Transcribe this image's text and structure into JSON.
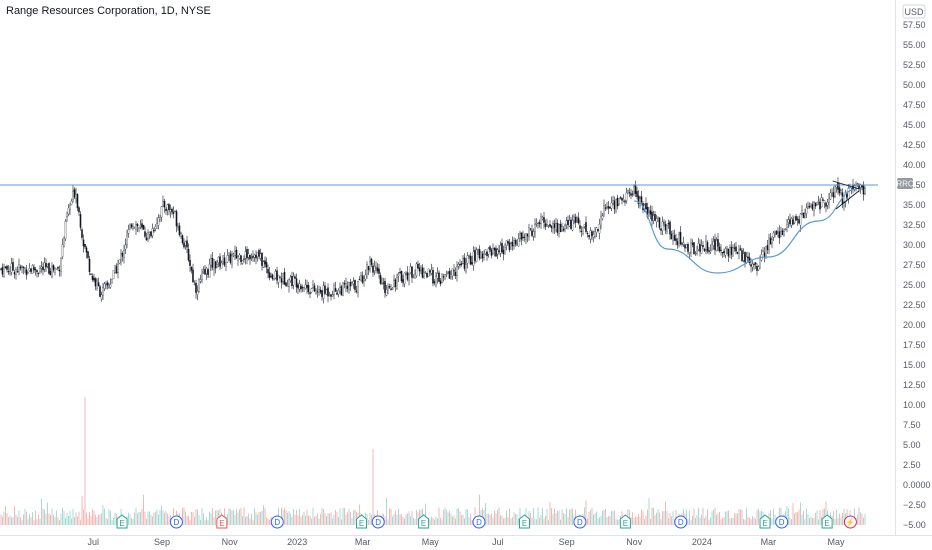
{
  "header": {
    "title": "Range Resources Corporation, 1D, NYSE"
  },
  "price_axis": {
    "currency": "USD",
    "ticks": [
      "57.50",
      "55.00",
      "52.50",
      "50.00",
      "47.50",
      "45.00",
      "42.50",
      "40.00",
      "37.50",
      "35.00",
      "32.50",
      "30.00",
      "27.50",
      "25.00",
      "22.50",
      "20.00",
      "17.50",
      "15.00",
      "12.50",
      "10.00",
      "7.50",
      "5.00",
      "2.50",
      "0.0000",
      "−2.50",
      "−5.00"
    ],
    "values": [
      57.5,
      55,
      52.5,
      50,
      47.5,
      45,
      42.5,
      40,
      37.5,
      35,
      32.5,
      30,
      27.5,
      25,
      22.5,
      20,
      17.5,
      15,
      12.5,
      10,
      7.5,
      5,
      2.5,
      0,
      -2.5,
      -5
    ]
  },
  "time_axis": {
    "labels": [
      "Jul",
      "Sep",
      "Nov",
      "2023",
      "Mar",
      "May",
      "Jul",
      "Sep",
      "Nov",
      "2024",
      "Mar",
      "May"
    ]
  },
  "symbol_tag": {
    "text": "RRC",
    "color": "#9598a1"
  },
  "colors": {
    "up": "#26a69a",
    "down": "#ef5350",
    "line": "#5b9bd5",
    "candle": "#131722"
  },
  "events": [
    {
      "type": "earnings",
      "label": "E",
      "date": "2022-07-27"
    },
    {
      "type": "dividend",
      "label": "D",
      "date": "2022-09-14"
    },
    {
      "type": "earnings-miss",
      "label": "E",
      "date": "2022-10-25"
    },
    {
      "type": "dividend",
      "label": "D",
      "date": "2022-12-14"
    },
    {
      "type": "earnings",
      "label": "E",
      "date": "2023-02-28"
    },
    {
      "type": "dividend",
      "label": "D",
      "date": "2023-03-15"
    },
    {
      "type": "earnings",
      "label": "E",
      "date": "2023-04-25"
    },
    {
      "type": "dividend",
      "label": "D",
      "date": "2023-06-14"
    },
    {
      "type": "earnings",
      "label": "E",
      "date": "2023-07-25"
    },
    {
      "type": "dividend",
      "label": "D",
      "date": "2023-09-13"
    },
    {
      "type": "earnings",
      "label": "E",
      "date": "2023-10-24"
    },
    {
      "type": "dividend",
      "label": "D",
      "date": "2023-12-13"
    },
    {
      "type": "earnings",
      "label": "E",
      "date": "2024-02-27"
    },
    {
      "type": "dividend",
      "label": "D",
      "date": "2024-03-13"
    },
    {
      "type": "earnings",
      "label": "E",
      "date": "2024-04-23"
    },
    {
      "type": "lightning",
      "label": "⚡",
      "date": "2024-05-14"
    }
  ],
  "chart_data": {
    "type": "line",
    "title": "Range Resources Corporation, 1D, NYSE",
    "ylabel": "USD",
    "ylim": [
      -5,
      60
    ],
    "series": [
      {
        "values": [
          {
            "x": "2022-05-31",
            "y": 27.0
          },
          {
            "x": "2022-06-08",
            "y": 34.0
          },
          {
            "x": "2022-06-15",
            "y": 37.0
          },
          {
            "x": "2022-06-22",
            "y": 30.5
          },
          {
            "x": "2022-06-30",
            "y": 26.0
          },
          {
            "x": "2022-07-08",
            "y": 24.0
          },
          {
            "x": "2022-07-15",
            "y": 25.0
          },
          {
            "x": "2022-07-25",
            "y": 28.0
          },
          {
            "x": "2022-08-05",
            "y": 33.0
          },
          {
            "x": "2022-08-20",
            "y": 31.0
          },
          {
            "x": "2022-09-03",
            "y": 35.0
          },
          {
            "x": "2022-09-12",
            "y": 34.0
          },
          {
            "x": "2022-09-25",
            "y": 28.5
          },
          {
            "x": "2022-10-01",
            "y": 24.5
          },
          {
            "x": "2022-10-15",
            "y": 27.5
          },
          {
            "x": "2022-11-05",
            "y": 28.5
          },
          {
            "x": "2022-11-25",
            "y": 29.0
          },
          {
            "x": "2022-12-10",
            "y": 26.0
          },
          {
            "x": "2022-12-31",
            "y": 25.5
          },
          {
            "x": "2023-01-20",
            "y": 24.0
          },
          {
            "x": "2023-02-10",
            "y": 24.5
          },
          {
            "x": "2023-02-25",
            "y": 25.0
          },
          {
            "x": "2023-03-08",
            "y": 28.0
          },
          {
            "x": "2023-03-20",
            "y": 24.5
          },
          {
            "x": "2023-04-05",
            "y": 26.0
          },
          {
            "x": "2023-04-20",
            "y": 27.0
          },
          {
            "x": "2023-05-10",
            "y": 25.5
          },
          {
            "x": "2023-05-30",
            "y": 27.5
          },
          {
            "x": "2023-06-15",
            "y": 29.0
          },
          {
            "x": "2023-07-05",
            "y": 29.5
          },
          {
            "x": "2023-07-25",
            "y": 31.0
          },
          {
            "x": "2023-08-10",
            "y": 33.0
          },
          {
            "x": "2023-08-25",
            "y": 32.0
          },
          {
            "x": "2023-09-10",
            "y": 33.0
          },
          {
            "x": "2023-09-25",
            "y": 31.0
          },
          {
            "x": "2023-10-05",
            "y": 34.5
          },
          {
            "x": "2023-10-25",
            "y": 36.0
          },
          {
            "x": "2023-10-31",
            "y": 37.0
          },
          {
            "x": "2023-11-15",
            "y": 33.5
          },
          {
            "x": "2023-12-01",
            "y": 32.0
          },
          {
            "x": "2023-12-20",
            "y": 29.5
          },
          {
            "x": "2024-01-10",
            "y": 30.0
          },
          {
            "x": "2024-02-01",
            "y": 29.0
          },
          {
            "x": "2024-02-20",
            "y": 27.5
          },
          {
            "x": "2024-03-05",
            "y": 31.0
          },
          {
            "x": "2024-03-25",
            "y": 33.0
          },
          {
            "x": "2024-04-10",
            "y": 35.0
          },
          {
            "x": "2024-04-25",
            "y": 35.5
          },
          {
            "x": "2024-05-01",
            "y": 37.0
          },
          {
            "x": "2024-05-08",
            "y": 35.5
          },
          {
            "x": "2024-05-15",
            "y": 37.0
          }
        ]
      }
    ],
    "resistance_level": 37.5,
    "cup_curve": [
      {
        "x": "2023-11-01",
        "y": 35.5
      },
      {
        "x": "2023-12-01",
        "y": 29.5
      },
      {
        "x": "2024-01-15",
        "y": 26.5
      },
      {
        "x": "2024-03-01",
        "y": 28.5
      },
      {
        "x": "2024-04-15",
        "y": 33.0
      },
      {
        "x": "2024-05-20",
        "y": 37.0
      }
    ],
    "pennant_upper": [
      {
        "x": "2024-04-28",
        "y": 38.0
      },
      {
        "x": "2024-05-22",
        "y": 37.0
      }
    ],
    "pennant_lower": [
      {
        "x": "2024-05-01",
        "y": 34.5
      },
      {
        "x": "2024-05-22",
        "y": 36.8
      }
    ],
    "volume_spikes": [
      {
        "x": "2022-06-24",
        "y": 11.0
      },
      {
        "x": "2023-03-10",
        "y": 4.5
      }
    ]
  }
}
